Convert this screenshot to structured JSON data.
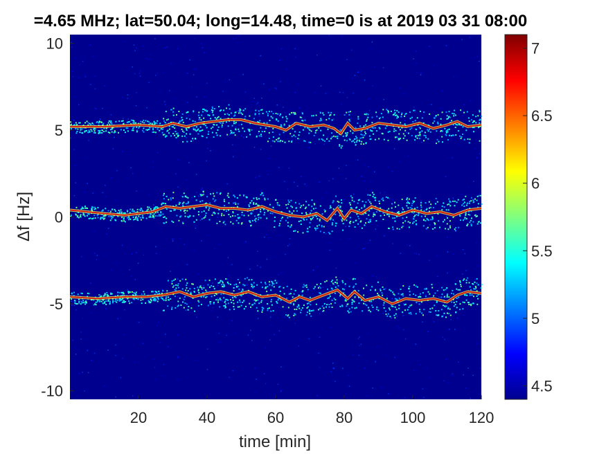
{
  "chart_data": {
    "type": "heatmap",
    "title": "=4.65 MHz;  lat=50.04; long=14.48, time=0 is at 2019 03 31 08:00",
    "xlabel": "time [min]",
    "ylabel": "Δf [Hz]",
    "xlim": [
      0,
      120
    ],
    "ylim": [
      -10.5,
      10.5
    ],
    "xticks": [
      20,
      40,
      60,
      80,
      100,
      120
    ],
    "xtick_labels": [
      "20",
      "40",
      "60",
      "80",
      "100",
      "120"
    ],
    "yticks": [
      10,
      5,
      0,
      -5,
      -10
    ],
    "ytick_labels": [
      "10",
      "5",
      "0",
      "-5",
      "-10"
    ],
    "colorbar": {
      "colormap": "jet",
      "range": [
        4.4,
        7.1
      ],
      "ticks": [
        7,
        6.5,
        6,
        5.5,
        5,
        4.5
      ],
      "tick_labels": [
        "7",
        "6.5",
        "6",
        "5.5",
        "5",
        "4.5"
      ]
    },
    "background_color": "#00008f",
    "series": [
      {
        "center_hz": 5.1,
        "points": [
          [
            0,
            5.2
          ],
          [
            10,
            5.2
          ],
          [
            20,
            5.3
          ],
          [
            27,
            5.2
          ],
          [
            30,
            5.4
          ],
          [
            34,
            5.2
          ],
          [
            38,
            5.4
          ],
          [
            42,
            5.5
          ],
          [
            46,
            5.6
          ],
          [
            50,
            5.6
          ],
          [
            54,
            5.4
          ],
          [
            57,
            5.3
          ],
          [
            60,
            5.2
          ],
          [
            63,
            5.0
          ],
          [
            66,
            5.4
          ],
          [
            70,
            5.2
          ],
          [
            74,
            5.3
          ],
          [
            77,
            5.1
          ],
          [
            79,
            4.8
          ],
          [
            81,
            5.4
          ],
          [
            83,
            5.0
          ],
          [
            86,
            5.1
          ],
          [
            90,
            5.4
          ],
          [
            94,
            5.3
          ],
          [
            98,
            5.2
          ],
          [
            102,
            5.4
          ],
          [
            106,
            5.1
          ],
          [
            110,
            5.3
          ],
          [
            113,
            5.5
          ],
          [
            116,
            5.2
          ],
          [
            120,
            5.3
          ]
        ]
      },
      {
        "center_hz": 0.3,
        "points": [
          [
            0,
            0.4
          ],
          [
            10,
            0.2
          ],
          [
            16,
            0.1
          ],
          [
            20,
            0.2
          ],
          [
            24,
            0.3
          ],
          [
            28,
            0.6
          ],
          [
            32,
            0.5
          ],
          [
            36,
            0.6
          ],
          [
            40,
            0.7
          ],
          [
            44,
            0.5
          ],
          [
            48,
            0.5
          ],
          [
            52,
            0.4
          ],
          [
            56,
            0.6
          ],
          [
            60,
            0.3
          ],
          [
            64,
            0.1
          ],
          [
            68,
            0.0
          ],
          [
            72,
            0.2
          ],
          [
            75,
            -0.2
          ],
          [
            78,
            0.5
          ],
          [
            80,
            -0.1
          ],
          [
            82,
            0.4
          ],
          [
            85,
            0.2
          ],
          [
            88,
            0.6
          ],
          [
            92,
            0.3
          ],
          [
            96,
            0.1
          ],
          [
            100,
            0.4
          ],
          [
            104,
            0.2
          ],
          [
            108,
            0.3
          ],
          [
            112,
            0.1
          ],
          [
            116,
            0.4
          ],
          [
            120,
            0.5
          ]
        ]
      },
      {
        "center_hz": -4.5,
        "points": [
          [
            0,
            -4.6
          ],
          [
            8,
            -4.7
          ],
          [
            16,
            -4.6
          ],
          [
            22,
            -4.6
          ],
          [
            27,
            -4.5
          ],
          [
            32,
            -4.3
          ],
          [
            36,
            -4.6
          ],
          [
            40,
            -4.4
          ],
          [
            44,
            -4.3
          ],
          [
            48,
            -4.5
          ],
          [
            52,
            -4.3
          ],
          [
            56,
            -4.6
          ],
          [
            60,
            -4.5
          ],
          [
            64,
            -4.9
          ],
          [
            67,
            -4.6
          ],
          [
            70,
            -4.8
          ],
          [
            74,
            -4.5
          ],
          [
            78,
            -4.2
          ],
          [
            81,
            -4.7
          ],
          [
            83,
            -4.3
          ],
          [
            86,
            -4.8
          ],
          [
            90,
            -4.6
          ],
          [
            94,
            -5.0
          ],
          [
            98,
            -4.7
          ],
          [
            102,
            -4.8
          ],
          [
            106,
            -4.7
          ],
          [
            110,
            -4.9
          ],
          [
            113,
            -4.5
          ],
          [
            116,
            -4.3
          ],
          [
            120,
            -4.4
          ]
        ]
      }
    ]
  }
}
